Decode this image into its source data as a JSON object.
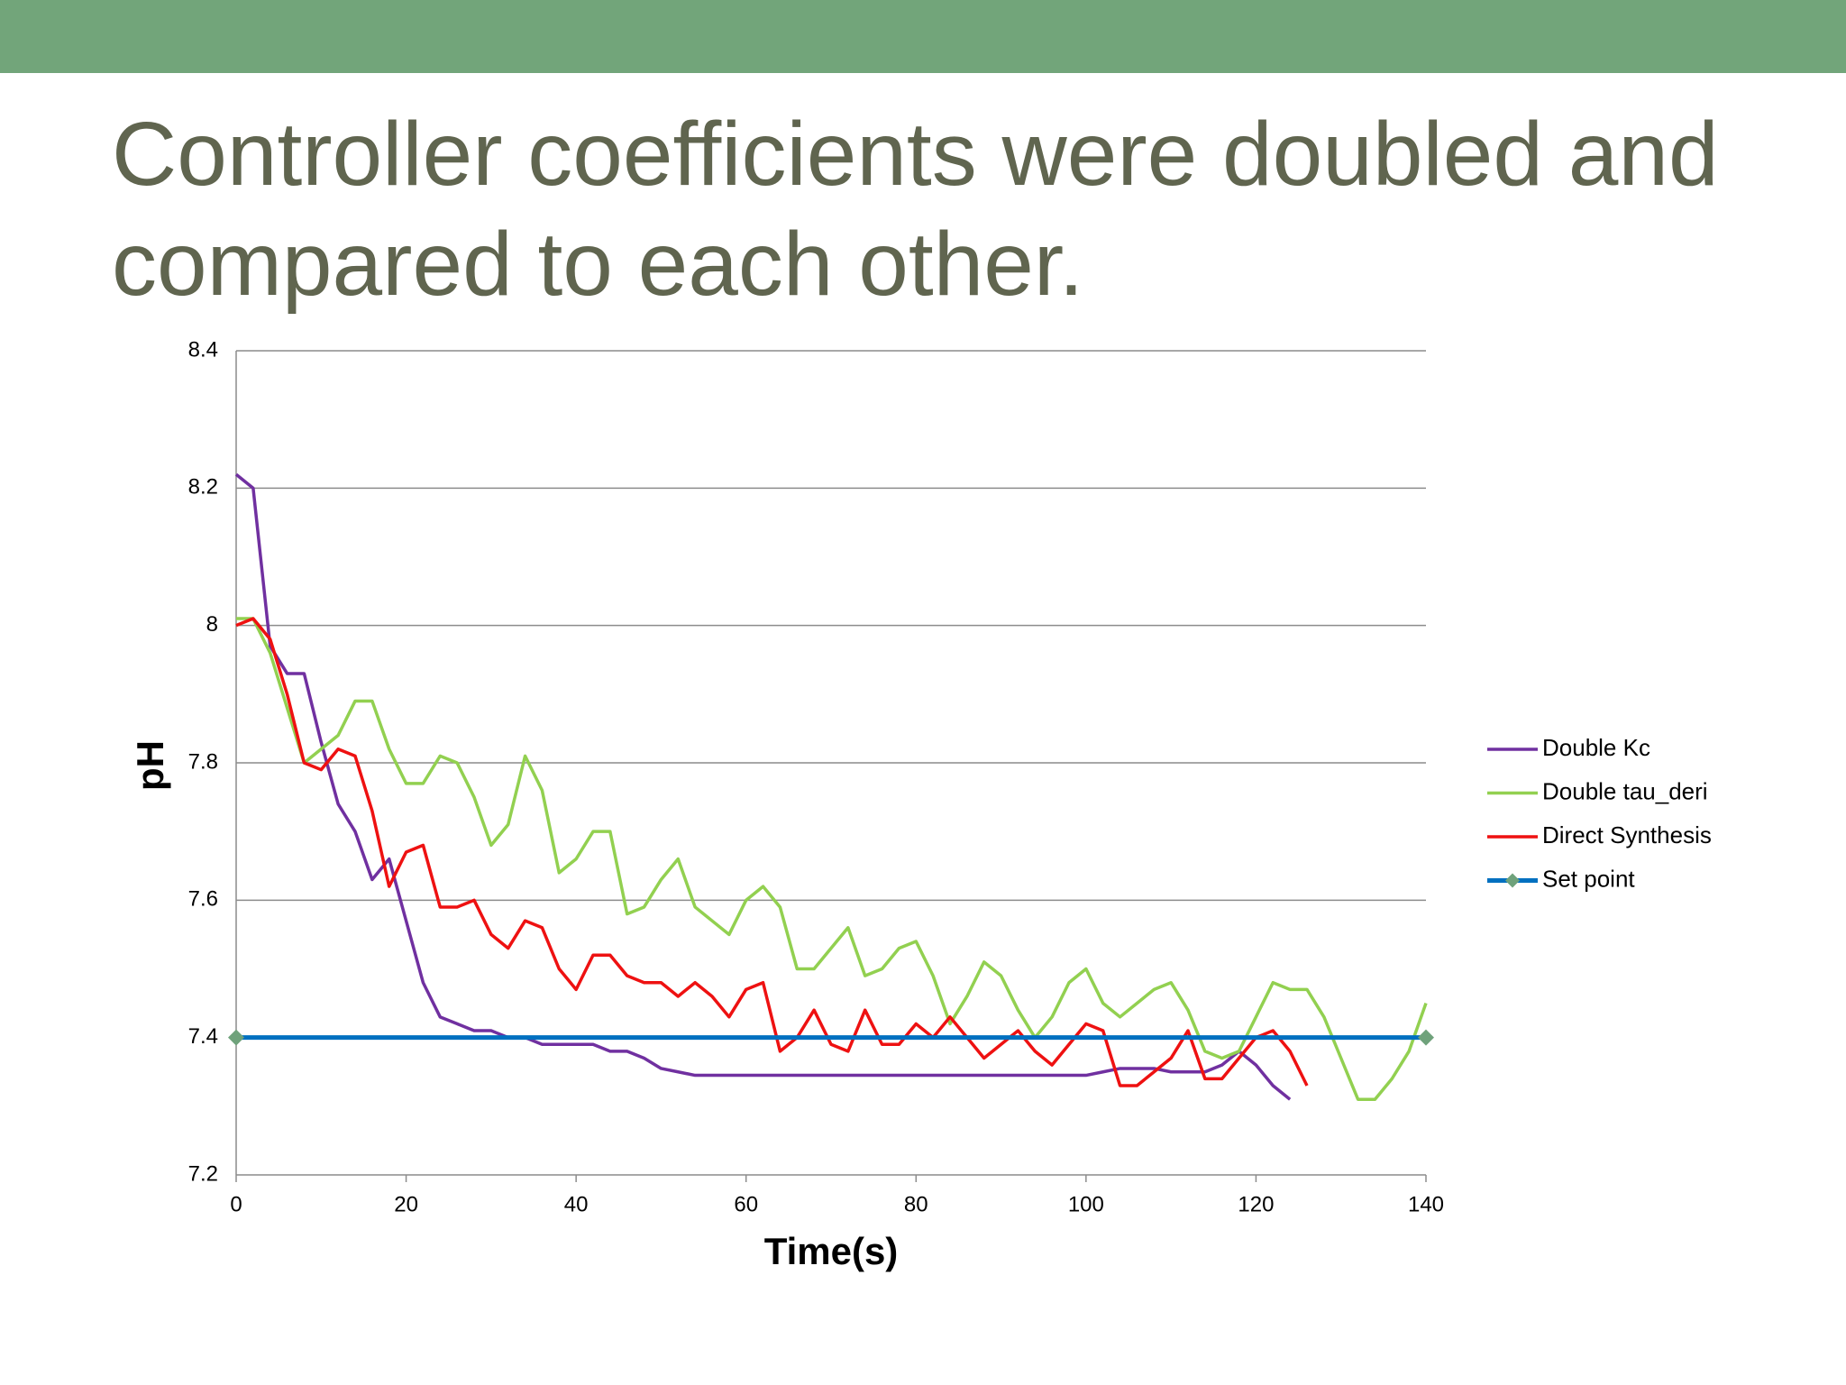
{
  "chart_data": {
    "type": "line",
    "title_lines": [
      "Controller coefficients were doubled and",
      "compared to each other."
    ],
    "x_label": "Time(s)",
    "y_label": "pH",
    "x": [
      0,
      2,
      4,
      6,
      8,
      10,
      12,
      14,
      16,
      18,
      20,
      22,
      24,
      26,
      28,
      30,
      32,
      34,
      36,
      38,
      40,
      42,
      44,
      46,
      48,
      50,
      52,
      54,
      56,
      58,
      60,
      62,
      64,
      66,
      68,
      70,
      72,
      74,
      76,
      78,
      80,
      82,
      84,
      86,
      88,
      90,
      92,
      94,
      96,
      98,
      100,
      102,
      104,
      106,
      108,
      110,
      112,
      114,
      116,
      118,
      120,
      122,
      124,
      126,
      128,
      130,
      132,
      134,
      136,
      138,
      140
    ],
    "series": [
      {
        "name": "Double Kc",
        "color": "#7030a0",
        "values": [
          8.22,
          8.2,
          7.97,
          7.93,
          7.93,
          7.83,
          7.74,
          7.7,
          7.63,
          7.66,
          7.57,
          7.48,
          7.43,
          7.42,
          7.41,
          7.41,
          7.4,
          7.4,
          7.39,
          7.39,
          7.39,
          7.39,
          7.38,
          7.38,
          7.37,
          7.355,
          7.35,
          7.345,
          7.345,
          7.345,
          7.345,
          7.345,
          7.345,
          7.345,
          7.345,
          7.345,
          7.345,
          7.345,
          7.345,
          7.345,
          7.345,
          7.345,
          7.345,
          7.345,
          7.345,
          7.345,
          7.345,
          7.345,
          7.345,
          7.345,
          7.345,
          7.35,
          7.355,
          7.355,
          7.355,
          7.35,
          7.35,
          7.35,
          7.36,
          7.38,
          7.36,
          7.33,
          7.31,
          null,
          null,
          null,
          null,
          null,
          null,
          null,
          null
        ]
      },
      {
        "name": "Double tau_deri",
        "color": "#92d050",
        "values": [
          8.01,
          8.01,
          7.96,
          7.88,
          7.8,
          7.82,
          7.84,
          7.89,
          7.89,
          7.82,
          7.77,
          7.77,
          7.81,
          7.8,
          7.75,
          7.68,
          7.71,
          7.81,
          7.76,
          7.64,
          7.66,
          7.7,
          7.7,
          7.58,
          7.59,
          7.63,
          7.66,
          7.59,
          7.57,
          7.55,
          7.6,
          7.62,
          7.59,
          7.5,
          7.5,
          7.53,
          7.56,
          7.49,
          7.5,
          7.53,
          7.54,
          7.49,
          7.42,
          7.46,
          7.51,
          7.49,
          7.44,
          7.4,
          7.43,
          7.48,
          7.5,
          7.45,
          7.43,
          7.45,
          7.47,
          7.48,
          7.44,
          7.38,
          7.37,
          7.38,
          7.43,
          7.48,
          7.47,
          7.47,
          7.43,
          7.37,
          7.31,
          7.31,
          7.34,
          7.38,
          7.45
        ]
      },
      {
        "name": "Direct Synthesis",
        "color": "#ee1111",
        "values": [
          8.0,
          8.01,
          7.98,
          7.9,
          7.8,
          7.79,
          7.82,
          7.81,
          7.73,
          7.62,
          7.67,
          7.68,
          7.59,
          7.59,
          7.6,
          7.55,
          7.53,
          7.57,
          7.56,
          7.5,
          7.47,
          7.52,
          7.52,
          7.49,
          7.48,
          7.48,
          7.46,
          7.48,
          7.46,
          7.43,
          7.47,
          7.48,
          7.38,
          7.4,
          7.44,
          7.39,
          7.38,
          7.44,
          7.39,
          7.39,
          7.42,
          7.4,
          7.43,
          7.4,
          7.37,
          7.39,
          7.41,
          7.38,
          7.36,
          7.39,
          7.42,
          7.41,
          7.33,
          7.33,
          7.35,
          7.37,
          7.41,
          7.34,
          7.34,
          7.37,
          7.4,
          7.41,
          7.38,
          7.33,
          null,
          null,
          null,
          null,
          null,
          null,
          null
        ]
      },
      {
        "name": "Set point",
        "color": "#0070c0",
        "marker_color": "#6fa27b",
        "x": [
          0,
          140
        ],
        "values": [
          7.4,
          7.4
        ]
      }
    ],
    "xlim": [
      0,
      140
    ],
    "xticks": [
      0,
      20,
      40,
      60,
      80,
      100,
      120,
      140
    ],
    "ylim": [
      7.2,
      8.4
    ],
    "yticks": [
      7.2,
      7.4,
      7.6,
      7.8,
      8,
      8.2,
      8.4
    ],
    "grid": true,
    "legend": "right"
  }
}
